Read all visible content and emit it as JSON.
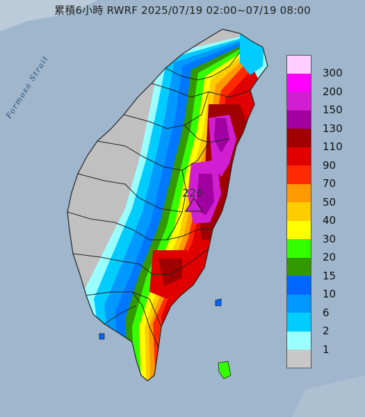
{
  "header": {
    "title": "累積6小時 RWRF 2025/07/19 02:00~07/19 08:00"
  },
  "map": {
    "strait_label": "Formosa Strait",
    "peak_value": "226"
  },
  "legend": {
    "items": [
      {
        "label": "300",
        "color": "#ffccff"
      },
      {
        "label": "200",
        "color": "#ff00ff"
      },
      {
        "label": "150",
        "color": "#d21ed2"
      },
      {
        "label": "130",
        "color": "#a000a0"
      },
      {
        "label": "110",
        "color": "#a00000"
      },
      {
        "label": "90",
        "color": "#e00000"
      },
      {
        "label": "70",
        "color": "#ff2a00"
      },
      {
        "label": "50",
        "color": "#ff9900"
      },
      {
        "label": "40",
        "color": "#ffcc00"
      },
      {
        "label": "30",
        "color": "#ffff00"
      },
      {
        "label": "20",
        "color": "#33ff00"
      },
      {
        "label": "15",
        "color": "#339900"
      },
      {
        "label": "10",
        "color": "#0066ff"
      },
      {
        "label": "6",
        "color": "#0099ff"
      },
      {
        "label": "2",
        "color": "#00ccff"
      },
      {
        "label": "1",
        "color": "#99ffff"
      },
      {
        "label": "",
        "color": "#c8c8c8"
      }
    ]
  },
  "colors": {
    "sea": "#9fb6cc",
    "land_dry": "#c0c0c0",
    "county_border": "#222222"
  }
}
